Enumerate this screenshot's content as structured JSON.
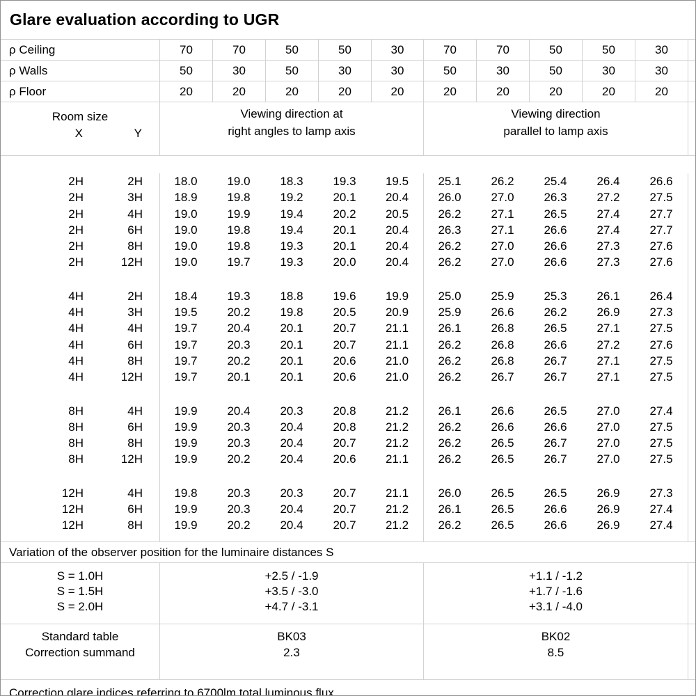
{
  "title": "Glare evaluation according to UGR",
  "colors": {
    "background": "#ffffff",
    "text": "#000000",
    "grid_line": "#d2d2d2",
    "outer_border": "#909090"
  },
  "reflectances": {
    "rows": [
      {
        "label": "ρ Ceiling",
        "values": [
          "70",
          "70",
          "50",
          "50",
          "30",
          "70",
          "70",
          "50",
          "50",
          "30"
        ]
      },
      {
        "label": "ρ Walls",
        "values": [
          "50",
          "30",
          "50",
          "30",
          "30",
          "50",
          "30",
          "50",
          "30",
          "30"
        ]
      },
      {
        "label": "ρ Floor",
        "values": [
          "20",
          "20",
          "20",
          "20",
          "20",
          "20",
          "20",
          "20",
          "20",
          "20"
        ]
      }
    ]
  },
  "column_headers": {
    "room_size": "Room size",
    "x": "X",
    "y": "Y",
    "right_angles_line1": "Viewing direction at",
    "right_angles_line2": "right angles to lamp axis",
    "parallel_line1": "Viewing direction",
    "parallel_line2": "parallel to lamp axis"
  },
  "ugr_values": {
    "groups": [
      {
        "rows": [
          {
            "x": "2H",
            "y": "2H",
            "right_angles": [
              "18.0",
              "19.0",
              "18.3",
              "19.3",
              "19.5"
            ],
            "parallel": [
              "25.1",
              "26.2",
              "25.4",
              "26.4",
              "26.6"
            ]
          },
          {
            "x": "2H",
            "y": "3H",
            "right_angles": [
              "18.9",
              "19.8",
              "19.2",
              "20.1",
              "20.4"
            ],
            "parallel": [
              "26.0",
              "27.0",
              "26.3",
              "27.2",
              "27.5"
            ]
          },
          {
            "x": "2H",
            "y": "4H",
            "right_angles": [
              "19.0",
              "19.9",
              "19.4",
              "20.2",
              "20.5"
            ],
            "parallel": [
              "26.2",
              "27.1",
              "26.5",
              "27.4",
              "27.7"
            ]
          },
          {
            "x": "2H",
            "y": "6H",
            "right_angles": [
              "19.0",
              "19.8",
              "19.4",
              "20.1",
              "20.4"
            ],
            "parallel": [
              "26.3",
              "27.1",
              "26.6",
              "27.4",
              "27.7"
            ]
          },
          {
            "x": "2H",
            "y": "8H",
            "right_angles": [
              "19.0",
              "19.8",
              "19.3",
              "20.1",
              "20.4"
            ],
            "parallel": [
              "26.2",
              "27.0",
              "26.6",
              "27.3",
              "27.6"
            ]
          },
          {
            "x": "2H",
            "y": "12H",
            "right_angles": [
              "19.0",
              "19.7",
              "19.3",
              "20.0",
              "20.4"
            ],
            "parallel": [
              "26.2",
              "27.0",
              "26.6",
              "27.3",
              "27.6"
            ]
          }
        ]
      },
      {
        "rows": [
          {
            "x": "4H",
            "y": "2H",
            "right_angles": [
              "18.4",
              "19.3",
              "18.8",
              "19.6",
              "19.9"
            ],
            "parallel": [
              "25.0",
              "25.9",
              "25.3",
              "26.1",
              "26.4"
            ]
          },
          {
            "x": "4H",
            "y": "3H",
            "right_angles": [
              "19.5",
              "20.2",
              "19.8",
              "20.5",
              "20.9"
            ],
            "parallel": [
              "25.9",
              "26.6",
              "26.2",
              "26.9",
              "27.3"
            ]
          },
          {
            "x": "4H",
            "y": "4H",
            "right_angles": [
              "19.7",
              "20.4",
              "20.1",
              "20.7",
              "21.1"
            ],
            "parallel": [
              "26.1",
              "26.8",
              "26.5",
              "27.1",
              "27.5"
            ]
          },
          {
            "x": "4H",
            "y": "6H",
            "right_angles": [
              "19.7",
              "20.3",
              "20.1",
              "20.7",
              "21.1"
            ],
            "parallel": [
              "26.2",
              "26.8",
              "26.6",
              "27.2",
              "27.6"
            ]
          },
          {
            "x": "4H",
            "y": "8H",
            "right_angles": [
              "19.7",
              "20.2",
              "20.1",
              "20.6",
              "21.0"
            ],
            "parallel": [
              "26.2",
              "26.8",
              "26.7",
              "27.1",
              "27.5"
            ]
          },
          {
            "x": "4H",
            "y": "12H",
            "right_angles": [
              "19.7",
              "20.1",
              "20.1",
              "20.6",
              "21.0"
            ],
            "parallel": [
              "26.2",
              "26.7",
              "26.7",
              "27.1",
              "27.5"
            ]
          }
        ]
      },
      {
        "rows": [
          {
            "x": "8H",
            "y": "4H",
            "right_angles": [
              "19.9",
              "20.4",
              "20.3",
              "20.8",
              "21.2"
            ],
            "parallel": [
              "26.1",
              "26.6",
              "26.5",
              "27.0",
              "27.4"
            ]
          },
          {
            "x": "8H",
            "y": "6H",
            "right_angles": [
              "19.9",
              "20.3",
              "20.4",
              "20.8",
              "21.2"
            ],
            "parallel": [
              "26.2",
              "26.6",
              "26.6",
              "27.0",
              "27.5"
            ]
          },
          {
            "x": "8H",
            "y": "8H",
            "right_angles": [
              "19.9",
              "20.3",
              "20.4",
              "20.7",
              "21.2"
            ],
            "parallel": [
              "26.2",
              "26.5",
              "26.7",
              "27.0",
              "27.5"
            ]
          },
          {
            "x": "8H",
            "y": "12H",
            "right_angles": [
              "19.9",
              "20.2",
              "20.4",
              "20.6",
              "21.1"
            ],
            "parallel": [
              "26.2",
              "26.5",
              "26.7",
              "27.0",
              "27.5"
            ]
          }
        ]
      },
      {
        "rows": [
          {
            "x": "12H",
            "y": "4H",
            "right_angles": [
              "19.8",
              "20.3",
              "20.3",
              "20.7",
              "21.1"
            ],
            "parallel": [
              "26.0",
              "26.5",
              "26.5",
              "26.9",
              "27.3"
            ]
          },
          {
            "x": "12H",
            "y": "6H",
            "right_angles": [
              "19.9",
              "20.3",
              "20.4",
              "20.7",
              "21.2"
            ],
            "parallel": [
              "26.1",
              "26.5",
              "26.6",
              "26.9",
              "27.4"
            ]
          },
          {
            "x": "12H",
            "y": "8H",
            "right_angles": [
              "19.9",
              "20.2",
              "20.4",
              "20.7",
              "21.2"
            ],
            "parallel": [
              "26.2",
              "26.5",
              "26.6",
              "26.9",
              "27.4"
            ]
          }
        ]
      }
    ]
  },
  "variation": {
    "note": "Variation of the observer position for the luminaire distances S",
    "rows": [
      {
        "s": "S = 1.0H",
        "right_angles": "+2.5 / -1.9",
        "parallel": "+1.1 / -1.2"
      },
      {
        "s": "S = 1.5H",
        "right_angles": "+3.5 / -3.0",
        "parallel": "+1.7 / -1.6"
      },
      {
        "s": "S = 2.0H",
        "right_angles": "+4.7 / -3.1",
        "parallel": "+3.1 / -4.0"
      }
    ]
  },
  "standard": {
    "row1_label": "Standard table",
    "row2_label": "Correction summand",
    "right_angles": {
      "table": "BK03",
      "summand": "2.3"
    },
    "parallel": {
      "table": "BK02",
      "summand": "8.5"
    }
  },
  "footer_note": "Correction glare indices referring to 6700lm total luminous flux"
}
